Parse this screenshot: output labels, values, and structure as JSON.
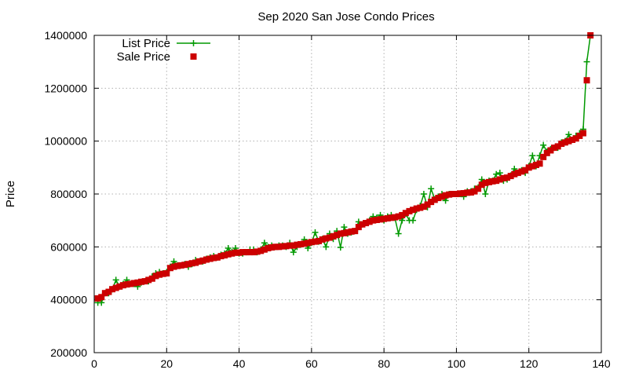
{
  "chart_data": {
    "type": "line",
    "title": "Sep 2020 San Jose Condo Prices",
    "xlabel": "",
    "ylabel": "Price",
    "xlim": [
      0,
      140
    ],
    "ylim": [
      200000,
      1400000
    ],
    "x_ticks": [
      0,
      20,
      40,
      60,
      80,
      100,
      120,
      140
    ],
    "y_ticks": [
      200000,
      400000,
      600000,
      800000,
      1000000,
      1200000,
      1400000
    ],
    "grid": true,
    "legend_position": "top-left",
    "series": [
      {
        "name": "List Price",
        "style": "linespoints",
        "marker": "plus",
        "color": "#009900",
        "values": [
          389000,
          389000,
          425000,
          425000,
          440000,
          475000,
          450000,
          460000,
          475000,
          460000,
          460000,
          450000,
          465000,
          470000,
          470000,
          488000,
          500000,
          505000,
          500000,
          505000,
          525000,
          545000,
          530000,
          530000,
          535000,
          525000,
          535000,
          550000,
          545000,
          545000,
          555000,
          560000,
          565000,
          560000,
          570000,
          575000,
          595000,
          580000,
          595000,
          575000,
          575000,
          580000,
          590000,
          590000,
          580000,
          590000,
          615000,
          600000,
          605000,
          600000,
          605000,
          605000,
          600000,
          615000,
          580000,
          600000,
          608000,
          628000,
          595000,
          615000,
          655000,
          620000,
          630000,
          600000,
          650000,
          630000,
          660000,
          598000,
          675000,
          650000,
          655000,
          660000,
          695000,
          685000,
          690000,
          700000,
          715000,
          710000,
          720000,
          700000,
          715000,
          720000,
          710000,
          650000,
          700000,
          725000,
          700000,
          700000,
          740000,
          755000,
          800000,
          750000,
          820000,
          780000,
          790000,
          800000,
          775000,
          800000,
          800000,
          800000,
          800000,
          790000,
          810000,
          810000,
          820000,
          825000,
          855000,
          800000,
          850000,
          850000,
          875000,
          880000,
          850000,
          855000,
          870000,
          895000,
          880000,
          890000,
          880000,
          905000,
          945000,
          905000,
          945000,
          985000,
          960000,
          970000,
          975000,
          975000,
          995000,
          1000000,
          1025000,
          1005000,
          1020000,
          1030000,
          1045000,
          1300000,
          1400000
        ]
      },
      {
        "name": "Sale Price",
        "style": "points",
        "marker": "square",
        "color": "#cc0000",
        "values": [
          405000,
          410000,
          425000,
          430000,
          440000,
          445000,
          450000,
          455000,
          458000,
          460000,
          463000,
          465000,
          468000,
          470000,
          475000,
          480000,
          490000,
          495000,
          498000,
          500000,
          520000,
          525000,
          528000,
          530000,
          532000,
          535000,
          538000,
          540000,
          545000,
          548000,
          552000,
          555000,
          558000,
          560000,
          565000,
          568000,
          572000,
          575000,
          578000,
          578000,
          580000,
          580000,
          580000,
          580000,
          582000,
          585000,
          590000,
          595000,
          598000,
          600000,
          600000,
          602000,
          603000,
          605000,
          605000,
          608000,
          610000,
          612000,
          615000,
          618000,
          620000,
          622000,
          628000,
          632000,
          635000,
          640000,
          645000,
          650000,
          652000,
          655000,
          658000,
          660000,
          675000,
          685000,
          690000,
          695000,
          700000,
          702000,
          704000,
          706000,
          708000,
          710000,
          712000,
          715000,
          720000,
          728000,
          735000,
          740000,
          745000,
          748000,
          752000,
          760000,
          770000,
          778000,
          785000,
          790000,
          795000,
          798000,
          800000,
          800000,
          802000,
          803000,
          805000,
          806000,
          810000,
          820000,
          835000,
          842000,
          845000,
          848000,
          850000,
          855000,
          860000,
          862000,
          868000,
          875000,
          880000,
          885000,
          890000,
          900000,
          905000,
          910000,
          915000,
          940000,
          955000,
          965000,
          975000,
          980000,
          990000,
          995000,
          1000000,
          1005000,
          1010000,
          1020000,
          1030000,
          1230000,
          1400000
        ]
      }
    ]
  }
}
